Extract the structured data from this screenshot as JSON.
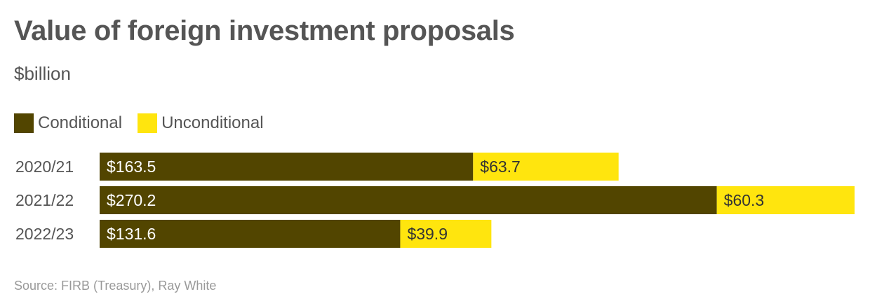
{
  "title": "Value of foreign investment proposals",
  "subtitle": "$billion",
  "legend": [
    {
      "label": "Conditional",
      "color": "#524500"
    },
    {
      "label": "Unconditional",
      "color": "#FFE50E"
    }
  ],
  "source": "Source: FIRB (Treasury), Ray White",
  "chart_data": {
    "type": "bar",
    "orientation": "horizontal",
    "stacked": true,
    "categories": [
      "2020/21",
      "2021/22",
      "2022/23"
    ],
    "series": [
      {
        "name": "Conditional",
        "color": "#524500",
        "values": [
          163.5,
          270.2,
          131.6
        ],
        "labels": [
          "$163.5",
          "$270.2",
          "$131.6"
        ]
      },
      {
        "name": "Unconditional",
        "color": "#FFE50E",
        "values": [
          63.7,
          60.3,
          39.9
        ],
        "labels": [
          "$63.7",
          "$60.3",
          "$39.9"
        ]
      }
    ],
    "xlim": [
      0,
      330.5
    ],
    "grid": false,
    "legend_position": "top-left"
  }
}
